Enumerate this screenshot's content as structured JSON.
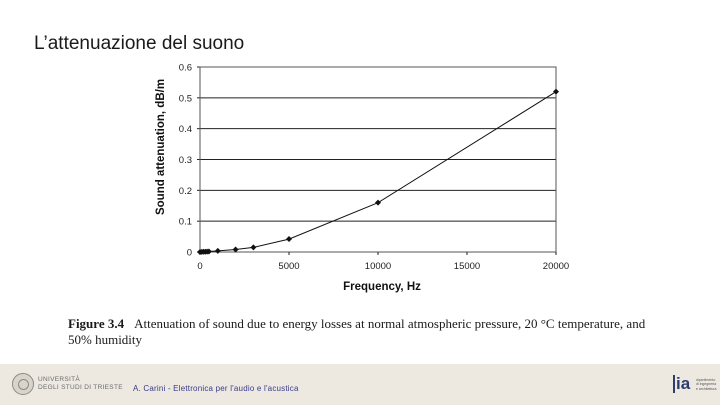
{
  "slide": {
    "title": "L’attenuazione del suono"
  },
  "chart_data": {
    "type": "line",
    "title": "",
    "xlabel": "Frequency, Hz",
    "ylabel": "Sound attenuation, dB/m",
    "xlim": [
      0,
      20000
    ],
    "ylim": [
      0,
      0.6
    ],
    "x_ticks": [
      0,
      5000,
      10000,
      15000,
      20000
    ],
    "y_ticks": [
      0,
      0.1,
      0.2,
      0.3,
      0.4,
      0.5,
      0.6
    ],
    "x_tick_labels": [
      "0",
      "5000",
      "10000",
      "15000",
      "20000"
    ],
    "y_tick_labels": [
      "0",
      "0.1",
      "0.2",
      "0.3",
      "0.4",
      "0.5",
      "0.6"
    ],
    "grid": {
      "horizontal": true,
      "vertical": false
    },
    "series": [
      {
        "x": [
          0,
          100,
          200,
          300,
          400,
          500,
          1000,
          2000,
          3000,
          5000,
          10000,
          20000
        ],
        "y": [
          0.0002,
          0.0004,
          0.0007,
          0.001,
          0.0013,
          0.0017,
          0.0035,
          0.008,
          0.015,
          0.042,
          0.16,
          0.52
        ],
        "markers": true
      }
    ]
  },
  "caption": {
    "label": "Figure 3.4",
    "text": "Attenuation of sound due to energy losses at normal atmospheric pressure, 20 °C temperature, and 50% humidity"
  },
  "footer": {
    "university_line1": "UNIVERSITÀ",
    "university_line2": "DEGLI STUDI DI TRIESTE",
    "author": "A. Carini - Elettronica per l'audio e l'acustica",
    "dept_mark": "ia",
    "dept_line1": "dipartimento",
    "dept_line2": "di ingegneria",
    "dept_line3": "e architettura"
  }
}
